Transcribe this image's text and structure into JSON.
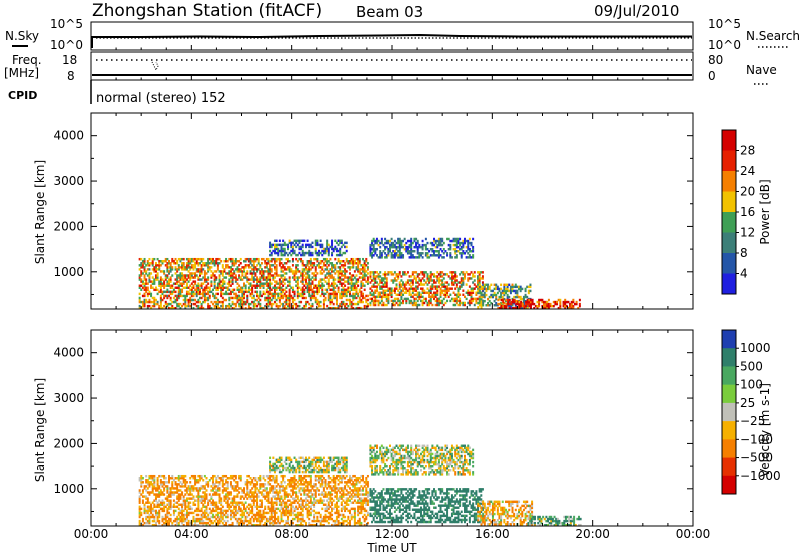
{
  "header": {
    "station": "Zhongshan Station (fitACF)",
    "beam": "Beam 03",
    "date": "09/Jul/2010"
  },
  "status_panel": {
    "nsky_label": "N.Sky",
    "nsearch_label": "N.Search",
    "nsky_ticks": [
      "10^5",
      "10^0"
    ],
    "nsearch_ticks": [
      "10^5",
      "10^0"
    ],
    "freq_label": "Freq.",
    "freq_unit": "[MHz]",
    "freq_ticks": [
      "18",
      "8"
    ],
    "nave_label": "Nave",
    "nave_ticks": [
      "80",
      "0"
    ],
    "cpid_label": "CPID",
    "cpid_text": "normal (stereo) 152"
  },
  "chart_data": [
    {
      "type": "heatmap",
      "quantity": "Power",
      "ylabel": "Slant Range [km]",
      "ylim": [
        180,
        4500
      ],
      "yticks": [
        "1000",
        "2000",
        "3000",
        "4000"
      ],
      "xlim": [
        "00:00",
        "24:00"
      ],
      "colorbar_label": "Power [dB]",
      "colorbar_ticks": [
        "4",
        "8",
        "12",
        "16",
        "20",
        "24",
        "28"
      ],
      "colorbar_range": [
        0,
        32
      ],
      "colors": [
        "#1f1fe0",
        "#2456a8",
        "#3c7f78",
        "#3f9f55",
        "#f2c200",
        "#f57f00",
        "#e62000",
        "#d40000"
      ],
      "data_regions": [
        {
          "t_start": 1.9,
          "t_end": 11.0,
          "range_start": 180,
          "range_end": 1300,
          "level": 20
        },
        {
          "t_start": 7.1,
          "t_end": 10.2,
          "range_start": 1350,
          "range_end": 1700,
          "level": 8
        },
        {
          "t_start": 11.1,
          "t_end": 15.2,
          "range_start": 1300,
          "range_end": 1750,
          "level": 8
        },
        {
          "t_start": 11.1,
          "t_end": 15.6,
          "range_start": 250,
          "range_end": 1000,
          "level": 20
        },
        {
          "t_start": 15.4,
          "t_end": 17.5,
          "range_start": 200,
          "range_end": 700,
          "level": 12
        },
        {
          "t_start": 16.2,
          "t_end": 19.5,
          "range_start": 180,
          "range_end": 400,
          "level": 28
        }
      ]
    },
    {
      "type": "heatmap",
      "quantity": "Velocity",
      "ylabel": "Slant Range [km]",
      "ylim": [
        180,
        4500
      ],
      "yticks": [
        "1000",
        "2000",
        "3000",
        "4000"
      ],
      "xlim": [
        "00:00",
        "24:00"
      ],
      "xticks": [
        "00:00",
        "04:00",
        "08:00",
        "12:00",
        "16:00",
        "20:00",
        "00:00"
      ],
      "xlabel": "Time UT",
      "colorbar_label": "Velocity [m s-1]",
      "colorbar_ticks": [
        "1000",
        "500",
        "100",
        "25",
        "−25",
        "−100",
        "−500",
        "−1000"
      ],
      "colors": [
        "#1f3fb0",
        "#2f7f6a",
        "#49a860",
        "#7acc3c",
        "#c0c0b8",
        "#f5b000",
        "#f57f00",
        "#e63000",
        "#d40000"
      ],
      "data_regions": [
        {
          "t_start": 1.9,
          "t_end": 11.0,
          "range_start": 180,
          "range_end": 1300,
          "velocity": -100
        },
        {
          "t_start": 7.1,
          "t_end": 10.2,
          "range_start": 1350,
          "range_end": 1700,
          "velocity": 0
        },
        {
          "t_start": 11.1,
          "t_end": 15.2,
          "range_start": 1300,
          "range_end": 1950,
          "velocity": 0
        },
        {
          "t_start": 11.1,
          "t_end": 15.6,
          "range_start": 250,
          "range_end": 1000,
          "velocity": 200
        },
        {
          "t_start": 15.4,
          "t_end": 17.6,
          "range_start": 200,
          "range_end": 700,
          "velocity": -80
        },
        {
          "t_start": 17.4,
          "t_end": 19.5,
          "range_start": 180,
          "range_end": 400,
          "velocity": 80
        }
      ]
    }
  ]
}
